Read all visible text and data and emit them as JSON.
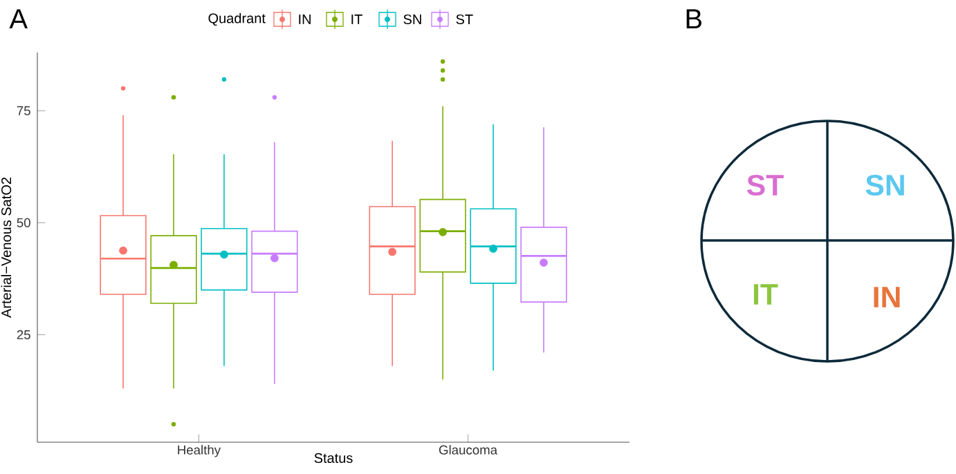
{
  "chart_data": [
    {
      "type": "box",
      "title": "A",
      "xlabel": "Status",
      "ylabel": "Arterial−Venous SatO2",
      "legend_title": "Quadrant",
      "legend": "top",
      "categories": [
        "Healthy",
        "Glaucoma"
      ],
      "ylim": [
        1,
        88
      ],
      "yticks": [
        25,
        50,
        75
      ],
      "grid": false,
      "series": [
        {
          "name": "IN",
          "color": "#f8766d",
          "boxes": [
            {
              "low": 13,
              "q1": 34,
              "median": 42,
              "q3": 51.6,
              "high": 74,
              "mean": 43.8,
              "outliers": [
                80
              ]
            },
            {
              "low": 18,
              "q1": 34,
              "median": 44.7,
              "q3": 53.6,
              "high": 68.3,
              "mean": 43.5
            }
          ]
        },
        {
          "name": "IT",
          "color": "#7cae00",
          "boxes": [
            {
              "low": 13,
              "q1": 32,
              "median": 39.9,
              "q3": 47.1,
              "high": 65.3,
              "mean": 40.6,
              "outliers": [
                5,
                78,
                78
              ]
            },
            {
              "low": 15,
              "q1": 39,
              "median": 48.1,
              "q3": 55.2,
              "high": 76,
              "mean": 47.9,
              "outliers": [
                82,
                84,
                86
              ]
            }
          ]
        },
        {
          "name": "SN",
          "color": "#00bfc4",
          "boxes": [
            {
              "low": 18,
              "q1": 35,
              "median": 43.1,
              "q3": 48.7,
              "high": 65.3,
              "mean": 42.9,
              "outliers": [
                82
              ]
            },
            {
              "low": 17,
              "q1": 36.5,
              "median": 44.7,
              "q3": 53.1,
              "high": 72,
              "mean": 44.2
            }
          ]
        },
        {
          "name": "ST",
          "color": "#c77cff",
          "boxes": [
            {
              "low": 14,
              "q1": 34.5,
              "median": 43.1,
              "q3": 48.1,
              "high": 68,
              "mean": 42.1,
              "outliers": [
                78
              ]
            },
            {
              "low": 21,
              "q1": 32.3,
              "median": 42.6,
              "q3": 49,
              "high": 71.3,
              "mean": 41.1
            }
          ]
        }
      ]
    },
    {
      "type": "other",
      "title": "B",
      "annotations": [
        "ST",
        "SN",
        "IT",
        "IN"
      ]
    }
  ]
}
